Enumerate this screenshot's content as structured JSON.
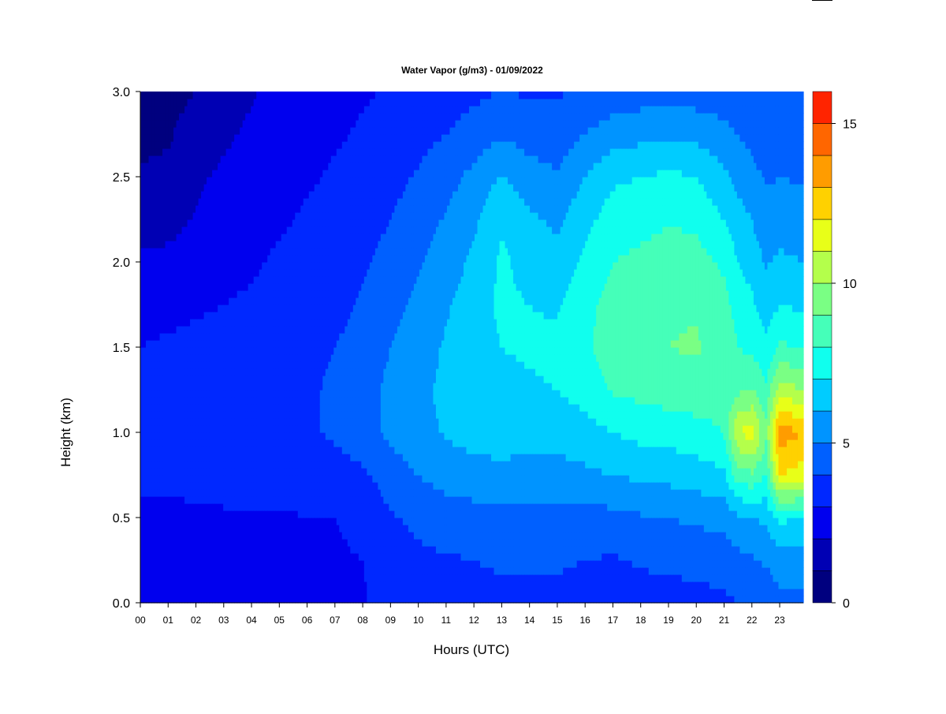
{
  "chart_data": {
    "type": "heatmap",
    "title": "Water Vapor (g/m3) - 01/09/2022",
    "xlabel": "Hours (UTC)",
    "ylabel": "Height (km)",
    "x_unit": "hour UTC",
    "y_unit": "km",
    "xlim": [
      0,
      23.85
    ],
    "ylim": [
      0,
      3.0
    ],
    "x_ticks": [
      "00",
      "01",
      "02",
      "03",
      "04",
      "05",
      "06",
      "07",
      "08",
      "09",
      "10",
      "11",
      "12",
      "13",
      "14",
      "15",
      "16",
      "17",
      "18",
      "19",
      "20",
      "21",
      "22",
      "23"
    ],
    "y_ticks": [
      "0.0",
      "0.5",
      "1.0",
      "1.5",
      "2.0",
      "2.5",
      "3.0"
    ],
    "colorbar": {
      "min": 0,
      "max": 16,
      "levels": [
        0,
        1,
        2,
        3,
        4,
        5,
        6,
        7,
        8,
        9,
        10,
        11,
        12,
        13,
        14,
        15,
        16
      ],
      "tick_labels": [
        "0",
        "5",
        "10",
        "15"
      ],
      "tick_values": [
        0,
        5,
        10,
        15
      ],
      "colors": [
        "#00007f",
        "#0000b4",
        "#0000ee",
        "#0028ff",
        "#0060ff",
        "#0094ff",
        "#00ccff",
        "#10ffee",
        "#45ffb9",
        "#7aff84",
        "#b4ff4b",
        "#e8ff18",
        "#ffd100",
        "#ff9c00",
        "#ff6600",
        "#ff2400",
        "#d40000",
        "#8b0000"
      ]
    },
    "hours_sampled": [
      0,
      1,
      2,
      3,
      4,
      5,
      6,
      7,
      8,
      9,
      10,
      11,
      12,
      13,
      14,
      15,
      16,
      17,
      18,
      19,
      20,
      21,
      21.5,
      22,
      22.5,
      23,
      23.85
    ],
    "heights_sampled_km": [
      0.0,
      0.25,
      0.5,
      0.75,
      1.0,
      1.25,
      1.5,
      1.75,
      2.0,
      2.25,
      2.5,
      2.75,
      3.0
    ],
    "values_g_m3": [
      [
        2.5,
        2.7,
        2.8,
        3.2,
        3.3,
        3.2,
        3.0,
        2.8,
        2.2,
        1.4,
        1.1,
        0.8,
        0.5
      ],
      [
        2.5,
        2.7,
        2.8,
        3.2,
        3.4,
        3.3,
        3.1,
        2.8,
        2.3,
        1.6,
        1.2,
        0.9,
        0.7
      ],
      [
        2.6,
        2.7,
        2.9,
        3.2,
        3.4,
        3.4,
        3.2,
        2.9,
        2.6,
        2.1,
        1.8,
        1.4,
        1.0
      ],
      [
        2.6,
        2.7,
        2.9,
        3.3,
        3.5,
        3.5,
        3.3,
        3.0,
        2.8,
        2.6,
        2.2,
        1.8,
        1.5
      ],
      [
        2.7,
        2.8,
        2.9,
        3.3,
        3.5,
        3.5,
        3.4,
        3.1,
        2.9,
        2.8,
        2.6,
        2.2,
        1.9
      ],
      [
        2.7,
        2.8,
        2.9,
        3.4,
        3.6,
        3.6,
        3.5,
        3.3,
        3.1,
        2.9,
        2.8,
        2.6,
        2.3
      ],
      [
        2.8,
        2.8,
        3.0,
        3.4,
        3.8,
        3.8,
        3.7,
        3.5,
        3.3,
        3.1,
        2.9,
        2.8,
        2.6
      ],
      [
        2.8,
        2.9,
        3.0,
        3.5,
        4.2,
        4.2,
        4.0,
        3.7,
        3.6,
        3.3,
        3.1,
        2.9,
        2.8
      ],
      [
        2.9,
        3.0,
        3.2,
        3.8,
        4.7,
        4.7,
        4.4,
        4.1,
        3.9,
        3.6,
        3.3,
        3.1,
        2.9
      ],
      [
        3.4,
        3.6,
        3.9,
        4.5,
        5.2,
        5.2,
        5.0,
        4.7,
        4.3,
        4.0,
        3.7,
        3.4,
        3.1
      ],
      [
        3.6,
        3.8,
        4.2,
        5.0,
        5.7,
        5.8,
        5.6,
        5.2,
        4.9,
        4.5,
        4.1,
        3.7,
        3.4
      ],
      [
        3.7,
        3.9,
        4.5,
        5.4,
        6.1,
        6.2,
        6.1,
        5.9,
        5.5,
        5.1,
        4.6,
        4.0,
        3.6
      ],
      [
        3.7,
        4.0,
        4.6,
        5.6,
        6.4,
        6.6,
        6.6,
        6.5,
        6.2,
        5.8,
        5.3,
        4.4,
        3.8
      ],
      [
        3.8,
        4.1,
        4.7,
        5.7,
        6.5,
        6.8,
        7.0,
        7.2,
        7.2,
        6.9,
        6.1,
        4.9,
        4.0
      ],
      [
        3.8,
        4.1,
        4.6,
        5.6,
        6.4,
        6.9,
        7.1,
        7.0,
        6.6,
        6.2,
        5.4,
        4.6,
        3.9
      ],
      [
        3.8,
        4.1,
        4.6,
        5.6,
        6.4,
        7.0,
        7.2,
        6.9,
        6.3,
        5.8,
        5.1,
        4.5,
        3.9
      ],
      [
        3.7,
        4.0,
        4.6,
        5.8,
        6.6,
        7.4,
        7.8,
        7.6,
        7.2,
        6.7,
        6.0,
        5.0,
        4.2
      ],
      [
        3.5,
        3.9,
        4.7,
        6.0,
        7.0,
        8.1,
        8.6,
        8.5,
        8.0,
        7.5,
        6.8,
        5.5,
        4.4
      ],
      [
        3.6,
        4.1,
        4.9,
        6.2,
        7.3,
        8.3,
        8.9,
        8.7,
        8.2,
        7.7,
        7.0,
        5.7,
        4.5
      ],
      [
        3.6,
        4.2,
        5.0,
        6.3,
        7.4,
        8.5,
        9.0,
        8.9,
        8.5,
        7.9,
        7.2,
        5.8,
        4.5
      ],
      [
        3.7,
        4.3,
        5.2,
        6.5,
        7.6,
        8.6,
        9.1,
        8.9,
        8.4,
        7.8,
        7.0,
        5.7,
        4.5
      ],
      [
        3.8,
        4.4,
        5.3,
        6.8,
        8.0,
        8.5,
        8.7,
        8.4,
        7.8,
        7.0,
        6.2,
        5.3,
        4.4
      ],
      [
        4.0,
        4.7,
        5.8,
        8.5,
        11.0,
        8.8,
        8.0,
        7.5,
        7.0,
        6.4,
        5.7,
        5.0,
        4.3
      ],
      [
        4.2,
        4.9,
        6.0,
        8.8,
        11.5,
        9.0,
        7.8,
        7.2,
        6.6,
        6.0,
        5.3,
        4.7,
        4.1
      ],
      [
        4.4,
        5.1,
        6.2,
        8.0,
        9.2,
        8.2,
        7.2,
        6.5,
        5.9,
        5.3,
        4.9,
        4.4,
        4.0
      ],
      [
        4.8,
        5.4,
        7.2,
        12.0,
        13.6,
        10.5,
        8.2,
        7.0,
        6.2,
        5.5,
        5.0,
        4.6,
        4.2
      ],
      [
        4.8,
        5.3,
        7.0,
        11.5,
        13.0,
        10.0,
        7.9,
        6.8,
        6.0,
        5.4,
        4.9,
        4.5,
        4.1
      ]
    ]
  }
}
